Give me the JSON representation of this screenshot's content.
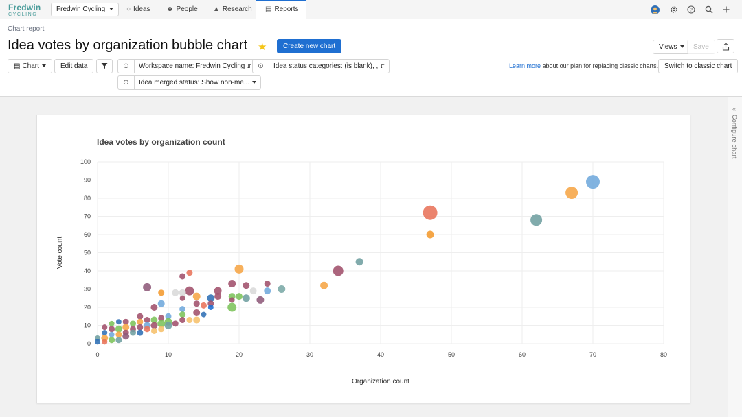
{
  "nav": {
    "logo_line1": "Fredwin",
    "logo_line2": "CYCLING",
    "workspace": "Fredwin Cycling",
    "tabs": [
      {
        "label": "Ideas",
        "icon": "lightbulb-icon"
      },
      {
        "label": "People",
        "icon": "person-icon"
      },
      {
        "label": "Research",
        "icon": "flask-icon"
      },
      {
        "label": "Reports",
        "icon": "chart-icon"
      }
    ],
    "right_icons": [
      "avatar",
      "gear-icon",
      "help-icon",
      "search-icon",
      "plus-icon"
    ]
  },
  "header": {
    "breadcrumb": "Chart report",
    "title": "Idea votes by organization bubble chart",
    "create_button": "Create new chart",
    "views_button": "Views",
    "save_button": "Save",
    "chart_button": "Chart",
    "edit_data_button": "Edit data",
    "filters": [
      "Workspace name: Fredwin Cycling",
      "Idea status categories: (is blank), ,",
      "Idea merged status: Show non-me..."
    ],
    "learn_link": "Learn more",
    "learn_text": "about our plan for replacing classic charts.",
    "switch_button": "Switch to classic chart"
  },
  "rail": {
    "label": "Configure chart"
  },
  "colors": {
    "accent": "#1f6fd1",
    "brand": "#4a9c9a"
  },
  "chart_data": {
    "type": "scatter",
    "title": "Idea votes by organization count",
    "xlabel": "Organization count",
    "ylabel": "Vote count",
    "xlim": [
      0,
      80
    ],
    "ylim": [
      0,
      100
    ],
    "xticks": [
      0,
      10,
      20,
      30,
      40,
      50,
      60,
      70,
      80
    ],
    "yticks": [
      0,
      10,
      20,
      30,
      40,
      50,
      60,
      70,
      80,
      90,
      100
    ],
    "grid": true,
    "points": [
      {
        "x": 70,
        "y": 89,
        "size": 10,
        "color": "#6fa8dc"
      },
      {
        "x": 67,
        "y": 83,
        "size": 9,
        "color": "#f6a545"
      },
      {
        "x": 62,
        "y": 68,
        "size": 8.5,
        "color": "#6f9fa0"
      },
      {
        "x": 47,
        "y": 72,
        "size": 10.5,
        "color": "#e8735a"
      },
      {
        "x": 47,
        "y": 60,
        "size": 5.5,
        "color": "#f49a2e"
      },
      {
        "x": 37,
        "y": 45,
        "size": 5.5,
        "color": "#6f9fa0"
      },
      {
        "x": 34,
        "y": 40,
        "size": 7.5,
        "color": "#a0506b"
      },
      {
        "x": 32,
        "y": 32,
        "size": 5.5,
        "color": "#f6a545"
      },
      {
        "x": 26,
        "y": 30,
        "size": 5.5,
        "color": "#7aa8a6"
      },
      {
        "x": 24,
        "y": 33,
        "size": 4.5,
        "color": "#a0506b"
      },
      {
        "x": 24,
        "y": 29,
        "size": 5,
        "color": "#6fa8dc"
      },
      {
        "x": 23,
        "y": 24,
        "size": 5.5,
        "color": "#8e5a7a"
      },
      {
        "x": 22,
        "y": 29,
        "size": 5,
        "color": "#d9d9d9"
      },
      {
        "x": 21,
        "y": 32,
        "size": 5,
        "color": "#a0506b"
      },
      {
        "x": 21,
        "y": 25,
        "size": 5.5,
        "color": "#6f9fa0"
      },
      {
        "x": 20,
        "y": 41,
        "size": 6.5,
        "color": "#f6a545"
      },
      {
        "x": 20,
        "y": 26,
        "size": 5,
        "color": "#7cc35a"
      },
      {
        "x": 19,
        "y": 33,
        "size": 5.5,
        "color": "#a0506b"
      },
      {
        "x": 19,
        "y": 26,
        "size": 5,
        "color": "#7cc35a"
      },
      {
        "x": 19,
        "y": 20,
        "size": 6.5,
        "color": "#7cc35a"
      },
      {
        "x": 19,
        "y": 24,
        "size": 4,
        "color": "#a0506b"
      },
      {
        "x": 17,
        "y": 29,
        "size": 5.5,
        "color": "#a0506b"
      },
      {
        "x": 17,
        "y": 26,
        "size": 5,
        "color": "#a0506b"
      },
      {
        "x": 16,
        "y": 25,
        "size": 5.5,
        "color": "#2f6fb5"
      },
      {
        "x": 16,
        "y": 22,
        "size": 4.5,
        "color": "#a0506b"
      },
      {
        "x": 16,
        "y": 20,
        "size": 4,
        "color": "#1f6fd1"
      },
      {
        "x": 15,
        "y": 21,
        "size": 4.5,
        "color": "#e8735a"
      },
      {
        "x": 15,
        "y": 16,
        "size": 4,
        "color": "#2f6fb5"
      },
      {
        "x": 14,
        "y": 26,
        "size": 5.5,
        "color": "#f6a545"
      },
      {
        "x": 14,
        "y": 22,
        "size": 4.5,
        "color": "#a0506b"
      },
      {
        "x": 14,
        "y": 17,
        "size": 5,
        "color": "#a0506b"
      },
      {
        "x": 14,
        "y": 13,
        "size": 5,
        "color": "#f6c06b"
      },
      {
        "x": 13,
        "y": 39,
        "size": 4.5,
        "color": "#e8735a"
      },
      {
        "x": 13,
        "y": 29,
        "size": 6.5,
        "color": "#a0506b"
      },
      {
        "x": 13,
        "y": 13,
        "size": 4.5,
        "color": "#f6c06b"
      },
      {
        "x": 12,
        "y": 37,
        "size": 4.5,
        "color": "#a0506b"
      },
      {
        "x": 12,
        "y": 28,
        "size": 5,
        "color": "#d9d9d9"
      },
      {
        "x": 12,
        "y": 25,
        "size": 4,
        "color": "#a0506b"
      },
      {
        "x": 12,
        "y": 19,
        "size": 4.5,
        "color": "#6fa8dc"
      },
      {
        "x": 12,
        "y": 16,
        "size": 4.5,
        "color": "#7cc35a"
      },
      {
        "x": 12,
        "y": 13,
        "size": 4.5,
        "color": "#a0506b"
      },
      {
        "x": 11,
        "y": 28,
        "size": 5,
        "color": "#d9d9d9"
      },
      {
        "x": 11,
        "y": 11,
        "size": 4.5,
        "color": "#a0506b"
      },
      {
        "x": 10,
        "y": 15,
        "size": 4.5,
        "color": "#6fa8dc"
      },
      {
        "x": 10,
        "y": 12,
        "size": 5.5,
        "color": "#7cc35a"
      },
      {
        "x": 10,
        "y": 10,
        "size": 5.5,
        "color": "#6f9fa0"
      },
      {
        "x": 9,
        "y": 28,
        "size": 4.5,
        "color": "#f49a2e"
      },
      {
        "x": 9,
        "y": 22,
        "size": 5,
        "color": "#6fa8dc"
      },
      {
        "x": 9,
        "y": 14,
        "size": 4.5,
        "color": "#a0506b"
      },
      {
        "x": 9,
        "y": 11,
        "size": 5.5,
        "color": "#7cc35a"
      },
      {
        "x": 9,
        "y": 8,
        "size": 4.5,
        "color": "#f6c06b"
      },
      {
        "x": 8,
        "y": 20,
        "size": 5,
        "color": "#a0506b"
      },
      {
        "x": 8,
        "y": 13,
        "size": 5,
        "color": "#7cc35a"
      },
      {
        "x": 8,
        "y": 10,
        "size": 5,
        "color": "#a0506b"
      },
      {
        "x": 8,
        "y": 7,
        "size": 4.5,
        "color": "#f6c06b"
      },
      {
        "x": 7,
        "y": 31,
        "size": 6,
        "color": "#8e5a7a"
      },
      {
        "x": 7,
        "y": 13,
        "size": 4.5,
        "color": "#a0506b"
      },
      {
        "x": 7,
        "y": 10,
        "size": 5,
        "color": "#6fa8dc"
      },
      {
        "x": 7,
        "y": 8,
        "size": 4.5,
        "color": "#e8735a"
      },
      {
        "x": 6,
        "y": 15,
        "size": 4.5,
        "color": "#a0506b"
      },
      {
        "x": 6,
        "y": 12,
        "size": 4.5,
        "color": "#f6a545"
      },
      {
        "x": 6,
        "y": 9,
        "size": 4.5,
        "color": "#a0506b"
      },
      {
        "x": 6,
        "y": 6,
        "size": 4.5,
        "color": "#2f6fb5"
      },
      {
        "x": 5,
        "y": 11,
        "size": 4.5,
        "color": "#7cc35a"
      },
      {
        "x": 5,
        "y": 8,
        "size": 4.5,
        "color": "#a0506b"
      },
      {
        "x": 5,
        "y": 6,
        "size": 4.5,
        "color": "#6f9fa0"
      },
      {
        "x": 4,
        "y": 12,
        "size": 4.5,
        "color": "#a0506b"
      },
      {
        "x": 4,
        "y": 9,
        "size": 5,
        "color": "#f6a545"
      },
      {
        "x": 4,
        "y": 6,
        "size": 4.5,
        "color": "#a0506b"
      },
      {
        "x": 4,
        "y": 4,
        "size": 5,
        "color": "#8e5a7a"
      },
      {
        "x": 3,
        "y": 12,
        "size": 4,
        "color": "#2f6fb5"
      },
      {
        "x": 3,
        "y": 8,
        "size": 5,
        "color": "#7cc35a"
      },
      {
        "x": 3,
        "y": 5,
        "size": 4.5,
        "color": "#f6a545"
      },
      {
        "x": 3,
        "y": 2,
        "size": 4.5,
        "color": "#6f9fa0"
      },
      {
        "x": 2,
        "y": 11,
        "size": 4,
        "color": "#7cc35a"
      },
      {
        "x": 2,
        "y": 8,
        "size": 4.5,
        "color": "#a0506b"
      },
      {
        "x": 2,
        "y": 5,
        "size": 4,
        "color": "#6fa8dc"
      },
      {
        "x": 2,
        "y": 2,
        "size": 4.5,
        "color": "#7cc35a"
      },
      {
        "x": 1,
        "y": 9,
        "size": 4,
        "color": "#a0506b"
      },
      {
        "x": 1,
        "y": 6,
        "size": 4,
        "color": "#2f6fb5"
      },
      {
        "x": 1,
        "y": 3,
        "size": 5,
        "color": "#f6a545"
      },
      {
        "x": 1,
        "y": 1,
        "size": 4,
        "color": "#e8735a"
      },
      {
        "x": 0,
        "y": 3,
        "size": 4,
        "color": "#6f9fa0"
      },
      {
        "x": 0,
        "y": 1,
        "size": 4,
        "color": "#2f6fb5"
      }
    ]
  }
}
